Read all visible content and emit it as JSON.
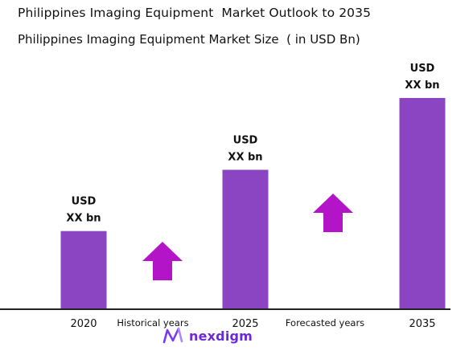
{
  "colors": {
    "bar": "#8b45c3",
    "arrow": "#b414c8",
    "axis": "#222222",
    "text": "#111111",
    "brand": "#6d28d9"
  },
  "brand": {
    "icon": "nexdigm-logo-icon",
    "name": "nexdigm"
  },
  "chart_data": {
    "type": "bar",
    "title": "Philippines Imaging Equipment  Market Outlook to 2035",
    "subtitle": "Philippines Imaging Equipment Market Size  ( in USD Bn)",
    "categories": [
      "2020",
      "2025",
      "2035"
    ],
    "values": [
      37,
      66,
      100
    ],
    "value_labels": [
      {
        "line1": "USD",
        "line2": "XX bn"
      },
      {
        "line1": "USD",
        "line2": "XX bn"
      },
      {
        "line1": "USD",
        "line2": "XX bn"
      }
    ],
    "ylim": [
      0,
      100
    ],
    "grid": false,
    "xlabel": "",
    "ylabel": "",
    "period_labels": [
      "Historical years",
      "Forecasted years"
    ],
    "arrows": [
      {
        "icon": "up-arrow-icon",
        "period": "Historical years"
      },
      {
        "icon": "up-arrow-icon",
        "period": "Forecasted years"
      }
    ]
  }
}
